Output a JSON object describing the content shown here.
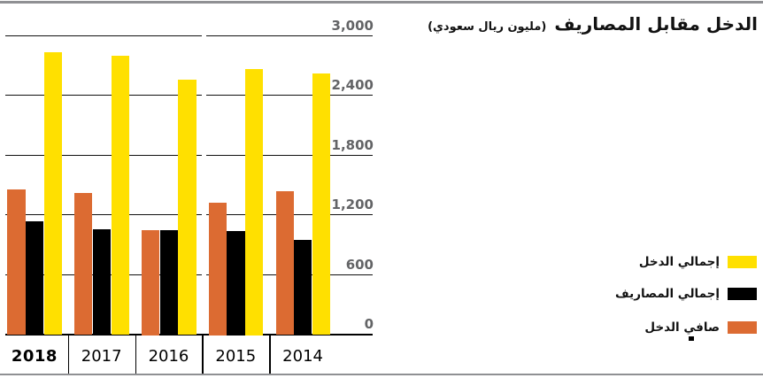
{
  "title": {
    "main": "الدخل مقابل المصاريف",
    "unit": "(مليون ريال سعودي)"
  },
  "legend": [
    {
      "label": "إجمالي الدخل",
      "color": "#FFE000"
    },
    {
      "label": "إجمالي المصاريف",
      "color": "#000000"
    },
    {
      "label": "صافي الدخل",
      "color": "#DC6B32"
    }
  ],
  "chart_data": {
    "type": "bar",
    "title": "الدخل مقابل المصاريف (مليون ريال سعودي)",
    "unit": "مليون ريال سعودي",
    "categories": [
      "2018",
      "2017",
      "2016",
      "2015",
      "2014"
    ],
    "emphasized_category": "2018",
    "series": [
      {
        "key": "net_income",
        "name": "صافي الدخل",
        "color": "#DC6B32",
        "group_position": 0,
        "values": [
          1450,
          1410,
          1040,
          1320,
          1430
        ]
      },
      {
        "key": "total_expenses",
        "name": "إجمالي المصاريف",
        "color": "#000000",
        "group_position": 1,
        "values": [
          1130,
          1050,
          1040,
          1030,
          940
        ]
      },
      {
        "key": "total_income",
        "name": "إجمالي الدخل",
        "color": "#FFE000",
        "group_position": 2,
        "values": [
          2830,
          2790,
          2550,
          2660,
          2610
        ]
      }
    ],
    "y_ticks": [
      {
        "label": "0",
        "value": 0
      },
      {
        "label": "600",
        "value": 600
      },
      {
        "label": "1,200",
        "value": 1200
      },
      {
        "label": "1,800",
        "value": 1800
      },
      {
        "label": "2,400",
        "value": 2400
      },
      {
        "label": "3,000",
        "value": 3000
      }
    ],
    "ylim": [
      0,
      3000
    ],
    "grid": true,
    "legend_position": "right",
    "layout_note": "years ordered newest-to-oldest left-to-right; within each group bars are net-income, expenses, income"
  }
}
